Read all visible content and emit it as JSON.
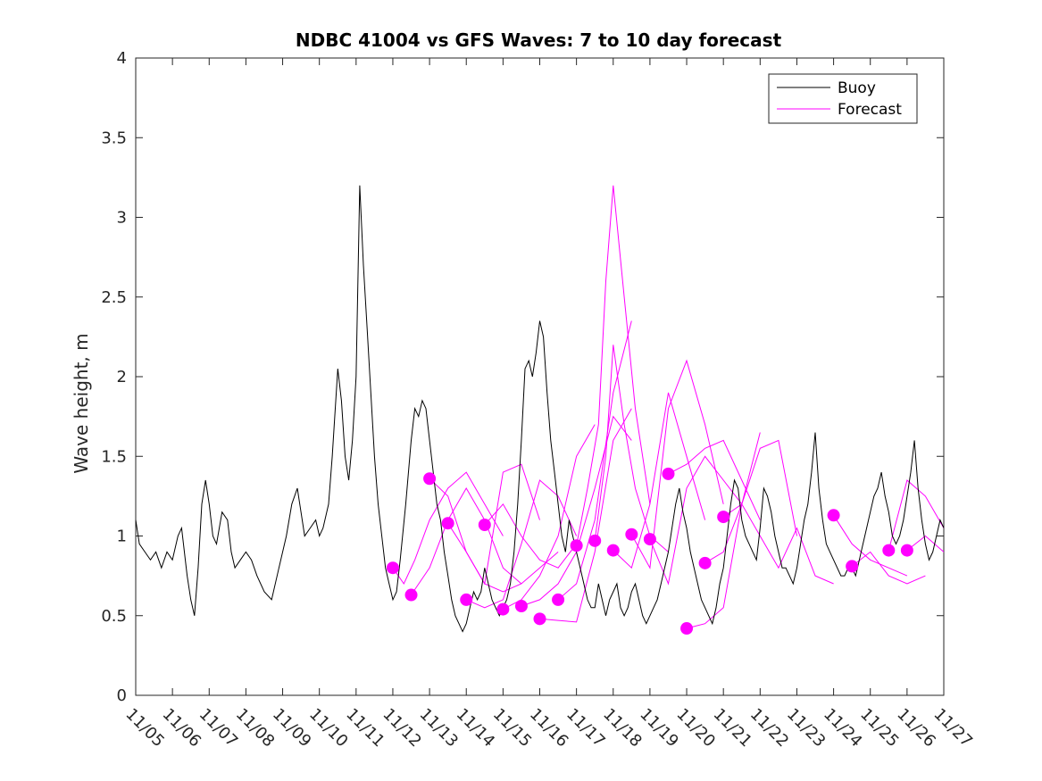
{
  "chart_data": {
    "type": "line",
    "title": "NDBC 41004 vs GFS Waves: 7 to 10 day forecast",
    "xlabel": "",
    "ylabel": "Wave height, m",
    "xlim": [
      0,
      22
    ],
    "ylim": [
      0,
      4
    ],
    "grid": false,
    "legend_position": "top-right",
    "x_tick_labels": [
      "11/05",
      "11/06",
      "11/07",
      "11/08",
      "11/09",
      "11/10",
      "11/11",
      "11/12",
      "11/13",
      "11/14",
      "11/15",
      "11/16",
      "11/17",
      "11/18",
      "11/19",
      "11/20",
      "11/21",
      "11/22",
      "11/23",
      "11/24",
      "11/25",
      "11/26",
      "11/27"
    ],
    "y_ticks": [
      0,
      0.5,
      1,
      1.5,
      2,
      2.5,
      3,
      3.5,
      4
    ],
    "y_tick_labels": [
      "0",
      "0.5",
      "1",
      "1.5",
      "2",
      "2.5",
      "3",
      "3.5",
      "4"
    ],
    "colors": {
      "buoy": "#000000",
      "forecast": "#ff00ff"
    },
    "series": [
      {
        "name": "Buoy",
        "x": [
          0,
          0.1,
          0.25,
          0.4,
          0.55,
          0.7,
          0.85,
          1.0,
          1.15,
          1.25,
          1.4,
          1.5,
          1.6,
          1.7,
          1.8,
          1.9,
          2.0,
          2.1,
          2.2,
          2.35,
          2.5,
          2.6,
          2.7,
          2.85,
          3.0,
          3.15,
          3.3,
          3.5,
          3.7,
          3.9,
          4.1,
          4.25,
          4.4,
          4.5,
          4.6,
          4.75,
          4.9,
          5.0,
          5.1,
          5.25,
          5.35,
          5.5,
          5.6,
          5.7,
          5.8,
          5.9,
          6.0,
          6.1,
          6.2,
          6.3,
          6.4,
          6.5,
          6.6,
          6.7,
          6.8,
          6.9,
          7.0,
          7.1,
          7.2,
          7.35,
          7.5,
          7.6,
          7.7,
          7.8,
          7.9,
          8.0,
          8.1,
          8.2,
          8.3,
          8.4,
          8.5,
          8.6,
          8.7,
          8.8,
          8.9,
          9.0,
          9.1,
          9.2,
          9.3,
          9.4,
          9.5,
          9.6,
          9.7,
          9.8,
          9.9,
          10.0,
          10.1,
          10.2,
          10.3,
          10.4,
          10.5,
          10.6,
          10.7,
          10.8,
          10.9,
          11.0,
          11.1,
          11.2,
          11.3,
          11.4,
          11.5,
          11.6,
          11.7,
          11.8,
          11.9,
          12.0,
          12.1,
          12.2,
          12.3,
          12.4,
          12.5,
          12.6,
          12.7,
          12.8,
          12.9,
          13.0,
          13.1,
          13.2,
          13.3,
          13.4,
          13.5,
          13.6,
          13.7,
          13.8,
          13.9,
          14.0,
          14.1,
          14.2,
          14.3,
          14.4,
          14.5,
          14.6,
          14.7,
          14.8,
          14.9,
          15.0,
          15.1,
          15.2,
          15.3,
          15.4,
          15.5,
          15.6,
          15.7,
          15.8,
          15.9,
          16.0,
          16.1,
          16.2,
          16.3,
          16.4,
          16.5,
          16.6,
          16.7,
          16.8,
          16.9,
          17.0,
          17.1,
          17.2,
          17.3,
          17.4,
          17.5,
          17.6,
          17.7,
          17.8,
          17.9,
          18.0,
          18.1,
          18.2,
          18.3,
          18.4,
          18.5,
          18.6,
          18.7,
          18.8,
          18.9,
          19.0,
          19.1,
          19.2,
          19.3,
          19.4,
          19.5,
          19.6,
          19.7,
          19.8,
          19.9,
          20.0,
          20.1,
          20.2,
          20.3,
          20.4,
          20.5,
          20.6,
          20.7,
          20.8,
          20.9,
          21.0,
          21.1,
          21.2,
          21.3,
          21.4,
          21.5,
          21.6,
          21.7,
          21.8,
          21.9,
          22.0
        ],
        "y": [
          1.1,
          0.95,
          0.9,
          0.85,
          0.9,
          0.8,
          0.9,
          0.85,
          1.0,
          1.05,
          0.75,
          0.6,
          0.5,
          0.8,
          1.2,
          1.35,
          1.2,
          1.0,
          0.95,
          1.15,
          1.1,
          0.9,
          0.8,
          0.85,
          0.9,
          0.85,
          0.75,
          0.65,
          0.6,
          0.8,
          1.0,
          1.2,
          1.3,
          1.15,
          1.0,
          1.05,
          1.1,
          1.0,
          1.05,
          1.2,
          1.5,
          2.05,
          1.85,
          1.5,
          1.35,
          1.6,
          2.0,
          3.2,
          2.7,
          2.3,
          1.9,
          1.5,
          1.2,
          1.0,
          0.8,
          0.7,
          0.6,
          0.65,
          0.85,
          1.2,
          1.6,
          1.8,
          1.75,
          1.85,
          1.8,
          1.6,
          1.4,
          1.2,
          1.1,
          0.9,
          0.75,
          0.6,
          0.5,
          0.45,
          0.4,
          0.45,
          0.55,
          0.65,
          0.6,
          0.65,
          0.8,
          0.7,
          0.6,
          0.55,
          0.5,
          0.55,
          0.6,
          0.7,
          0.9,
          1.2,
          1.6,
          2.05,
          2.1,
          2.0,
          2.15,
          2.35,
          2.25,
          1.9,
          1.6,
          1.4,
          1.2,
          1.0,
          0.9,
          1.1,
          1.0,
          0.9,
          0.8,
          0.7,
          0.6,
          0.55,
          0.55,
          0.7,
          0.6,
          0.5,
          0.6,
          0.65,
          0.7,
          0.55,
          0.5,
          0.55,
          0.65,
          0.7,
          0.6,
          0.5,
          0.45,
          0.5,
          0.55,
          0.6,
          0.7,
          0.8,
          0.9,
          1.05,
          1.2,
          1.3,
          1.15,
          1.05,
          0.9,
          0.8,
          0.7,
          0.6,
          0.55,
          0.5,
          0.45,
          0.55,
          0.7,
          0.8,
          1.0,
          1.2,
          1.35,
          1.3,
          1.1,
          1.0,
          0.95,
          0.9,
          0.85,
          1.05,
          1.3,
          1.25,
          1.15,
          1.0,
          0.9,
          0.8,
          0.8,
          0.75,
          0.7,
          0.8,
          0.95,
          1.1,
          1.2,
          1.4,
          1.65,
          1.3,
          1.1,
          0.95,
          0.9,
          0.85,
          0.8,
          0.75,
          0.75,
          0.8,
          0.8,
          0.75,
          0.85,
          0.95,
          1.05,
          1.15,
          1.25,
          1.3,
          1.4,
          1.25,
          1.15,
          1.0,
          0.95,
          1.0,
          1.1,
          1.25,
          1.4,
          1.6,
          1.3,
          1.1,
          0.95,
          0.85,
          0.9,
          1.0,
          1.1,
          1.05
        ]
      },
      {
        "name": "Forecast",
        "segments": [
          {
            "x": [
              7.0,
              7.3,
              7.6,
              8.0,
              8.5,
              9.0,
              9.5,
              10.0
            ],
            "y": [
              0.8,
              0.7,
              0.85,
              1.1,
              1.3,
              1.4,
              1.2,
              1.0
            ]
          },
          {
            "x": [
              7.5,
              8.0,
              8.5,
              9.0,
              9.5,
              10.0,
              10.5
            ],
            "y": [
              0.63,
              0.8,
              1.1,
              1.3,
              1.1,
              0.8,
              0.7
            ]
          },
          {
            "x": [
              8.0,
              8.5,
              9.0,
              9.5,
              10.0,
              10.5,
              11.0,
              11.5
            ],
            "y": [
              1.36,
              1.25,
              0.9,
              0.7,
              0.65,
              0.7,
              0.8,
              0.9
            ]
          },
          {
            "x": [
              8.5,
              9.0,
              9.5,
              10.0,
              10.5,
              11.0
            ],
            "y": [
              1.08,
              0.9,
              0.7,
              1.4,
              1.45,
              1.1
            ]
          },
          {
            "x": [
              9.0,
              9.5,
              10.0,
              10.5,
              11.0,
              11.5,
              12.0
            ],
            "y": [
              0.6,
              0.55,
              0.6,
              0.95,
              1.35,
              1.25,
              1.0
            ]
          },
          {
            "x": [
              9.5,
              10.0,
              10.5,
              11.0,
              11.5,
              12.0
            ],
            "y": [
              1.07,
              1.2,
              1.0,
              0.85,
              0.8,
              0.95
            ]
          },
          {
            "x": [
              10.0,
              10.5,
              11.0,
              11.5,
              12.0,
              12.5
            ],
            "y": [
              0.54,
              0.6,
              0.75,
              1.0,
              1.5,
              1.7
            ]
          },
          {
            "x": [
              10.5,
              11.0,
              11.5,
              12.0,
              12.5,
              13.0,
              13.5
            ],
            "y": [
              0.56,
              0.6,
              0.7,
              0.9,
              1.3,
              1.75,
              1.6
            ]
          },
          {
            "x": [
              11.0,
              11.5,
              12.0,
              12.5,
              13.0,
              13.5
            ],
            "y": [
              0.48,
              0.47,
              0.46,
              0.9,
              1.6,
              1.8
            ]
          },
          {
            "x": [
              11.5,
              12.0,
              12.5,
              13.0,
              13.5
            ],
            "y": [
              0.6,
              0.7,
              1.1,
              1.9,
              2.35
            ]
          },
          {
            "x": [
              12.0,
              12.3,
              12.6,
              12.8,
              13.0,
              13.3,
              13.6,
              14.0
            ],
            "y": [
              0.94,
              1.3,
              1.7,
              2.6,
              3.2,
              2.5,
              1.8,
              1.2
            ]
          },
          {
            "x": [
              12.5,
              12.8,
              13.0,
              13.3,
              13.6,
              14.0,
              14.5
            ],
            "y": [
              0.97,
              1.5,
              2.2,
              1.7,
              1.3,
              1.0,
              0.9
            ]
          },
          {
            "x": [
              13.0,
              13.5,
              14.0,
              14.5,
              15.0,
              15.5
            ],
            "y": [
              0.91,
              0.8,
              1.2,
              1.9,
              1.5,
              1.1
            ]
          },
          {
            "x": [
              13.5,
              14.0,
              14.5,
              15.0,
              15.5,
              16.0
            ],
            "y": [
              1.01,
              0.8,
              1.8,
              2.1,
              1.7,
              1.2
            ]
          },
          {
            "x": [
              14.0,
              14.5,
              15.0,
              15.5,
              16.0,
              16.5
            ],
            "y": [
              0.98,
              0.7,
              1.3,
              1.5,
              1.35,
              1.2
            ]
          },
          {
            "x": [
              14.5,
              15.0,
              15.5,
              16.0,
              16.5,
              17.0
            ],
            "y": [
              1.39,
              1.45,
              1.55,
              1.6,
              1.35,
              1.1
            ]
          },
          {
            "x": [
              15.0,
              15.5,
              16.0,
              16.5,
              17.0
            ],
            "y": [
              0.42,
              0.45,
              0.55,
              1.2,
              1.65
            ]
          },
          {
            "x": [
              15.5,
              16.0,
              16.5,
              17.0,
              17.5,
              18.0
            ],
            "y": [
              0.83,
              0.9,
              1.2,
              1.55,
              1.6,
              1.0
            ]
          },
          {
            "x": [
              16.0,
              16.5,
              17.0,
              17.5,
              18.0,
              18.5,
              19.0
            ],
            "y": [
              1.12,
              1.2,
              1.0,
              0.8,
              1.05,
              0.75,
              0.7
            ]
          },
          {
            "x": [
              19.0,
              19.5,
              20.0,
              20.5,
              21.0
            ],
            "y": [
              1.13,
              0.95,
              0.85,
              0.8,
              0.75
            ]
          },
          {
            "x": [
              19.5,
              20.0,
              20.5,
              21.0,
              21.5
            ],
            "y": [
              0.81,
              0.9,
              0.75,
              0.7,
              0.75
            ]
          },
          {
            "x": [
              20.5,
              21.0,
              21.5,
              22.0
            ],
            "y": [
              0.91,
              1.35,
              1.25,
              1.05
            ]
          },
          {
            "x": [
              21.0,
              21.5,
              22.0
            ],
            "y": [
              0.91,
              1.0,
              0.9
            ]
          }
        ]
      }
    ],
    "markers": {
      "name": "Forecast start",
      "x": [
        7.0,
        7.5,
        8.0,
        8.5,
        9.0,
        9.5,
        10.0,
        10.5,
        11.0,
        11.5,
        12.0,
        12.5,
        13.0,
        13.5,
        14.0,
        14.5,
        15.0,
        15.5,
        16.0,
        19.0,
        19.5,
        20.5,
        21.0
      ],
      "y": [
        0.8,
        0.63,
        1.36,
        1.08,
        0.6,
        1.07,
        0.54,
        0.56,
        0.48,
        0.6,
        0.94,
        0.97,
        0.91,
        1.01,
        0.98,
        1.39,
        0.42,
        0.83,
        1.12,
        1.13,
        0.81,
        0.91,
        0.91
      ]
    }
  }
}
